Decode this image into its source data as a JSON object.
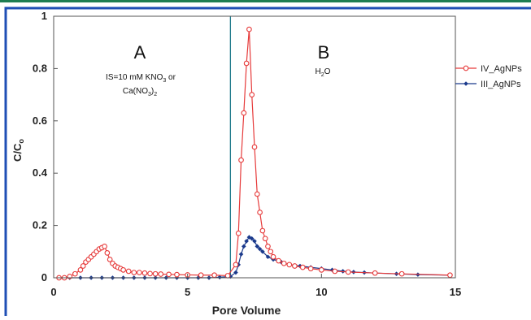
{
  "colors": {
    "top_bar": "#1e7d52",
    "border": "#1f4fb5",
    "divider": "#1f7a8c",
    "series_iv": "#e63a3a",
    "series_iii": "#1b3a8c"
  },
  "chart_data": {
    "type": "line",
    "xlabel": "Pore Volume",
    "ylabel": "C/C",
    "ylabel_sub": "o",
    "xlim": [
      0,
      15
    ],
    "ylim": [
      0,
      1
    ],
    "x_ticks": [
      0,
      5,
      10,
      15
    ],
    "y_ticks": [
      0,
      0.2,
      0.4,
      0.6,
      0.8,
      1
    ],
    "x_tick_labels": [
      "0",
      "5",
      "10",
      "15"
    ],
    "y_tick_labels": [
      "0",
      "0.2",
      "0.4",
      "0.6",
      "0.8",
      "1"
    ],
    "grid": false,
    "legend_position": "right",
    "divider_x": 6.6,
    "annotations": {
      "phase_a": "A",
      "phase_a_line1_pre": "IS=10 mM KNO",
      "phase_a_line1_sub": "3",
      "phase_a_line1_post": " or",
      "phase_a_line2_pre": "Ca(NO",
      "phase_a_line2_sub1": "3",
      "phase_a_line2_mid": ")",
      "phase_a_line2_sub2": "2",
      "phase_b": "B",
      "phase_b_pre": "H",
      "phase_b_sub": "2",
      "phase_b_post": "O"
    },
    "series": [
      {
        "name": "IV_AgNPs",
        "marker": "open-circle",
        "x": [
          0.2,
          0.4,
          0.6,
          0.8,
          1.0,
          1.1,
          1.2,
          1.3,
          1.4,
          1.5,
          1.6,
          1.7,
          1.8,
          1.9,
          2.0,
          2.1,
          2.2,
          2.3,
          2.4,
          2.5,
          2.6,
          2.8,
          3.0,
          3.2,
          3.4,
          3.6,
          3.8,
          4.0,
          4.3,
          4.6,
          5.0,
          5.5,
          6.0,
          6.5,
          6.8,
          6.9,
          7.0,
          7.1,
          7.2,
          7.3,
          7.4,
          7.5,
          7.6,
          7.7,
          7.8,
          7.9,
          8.0,
          8.1,
          8.2,
          8.4,
          8.6,
          8.8,
          9.0,
          9.3,
          9.6,
          10.0,
          10.5,
          11.0,
          12.0,
          13.0,
          14.8
        ],
        "y": [
          0.0,
          0.0,
          0.005,
          0.015,
          0.03,
          0.045,
          0.06,
          0.07,
          0.08,
          0.09,
          0.1,
          0.11,
          0.115,
          0.12,
          0.095,
          0.07,
          0.055,
          0.045,
          0.04,
          0.035,
          0.03,
          0.025,
          0.02,
          0.02,
          0.018,
          0.016,
          0.015,
          0.014,
          0.013,
          0.012,
          0.011,
          0.01,
          0.01,
          0.008,
          0.05,
          0.17,
          0.45,
          0.63,
          0.82,
          0.95,
          0.7,
          0.5,
          0.32,
          0.25,
          0.18,
          0.15,
          0.12,
          0.1,
          0.08,
          0.065,
          0.055,
          0.05,
          0.045,
          0.04,
          0.035,
          0.03,
          0.025,
          0.022,
          0.018,
          0.015,
          0.01
        ]
      },
      {
        "name": "III_AgNPs",
        "marker": "filled-diamond",
        "x": [
          0.2,
          0.6,
          1.0,
          1.4,
          1.8,
          2.2,
          2.6,
          3.0,
          3.4,
          3.8,
          4.2,
          4.6,
          5.0,
          5.4,
          5.8,
          6.2,
          6.6,
          6.8,
          6.9,
          7.0,
          7.1,
          7.2,
          7.3,
          7.4,
          7.5,
          7.6,
          7.7,
          7.8,
          8.0,
          8.2,
          8.5,
          8.8,
          9.2,
          9.6,
          10.0,
          10.4,
          10.8,
          11.2,
          11.6,
          12.0,
          12.8,
          13.6,
          14.8
        ],
        "y": [
          0,
          0,
          0,
          0,
          0,
          0,
          0,
          0,
          0,
          0,
          0,
          0,
          0,
          0,
          0,
          0.002,
          0.005,
          0.02,
          0.05,
          0.09,
          0.12,
          0.14,
          0.155,
          0.15,
          0.14,
          0.12,
          0.11,
          0.1,
          0.08,
          0.07,
          0.06,
          0.05,
          0.045,
          0.04,
          0.035,
          0.03,
          0.025,
          0.022,
          0.02,
          0.018,
          0.015,
          0.012,
          0.01
        ]
      }
    ]
  }
}
